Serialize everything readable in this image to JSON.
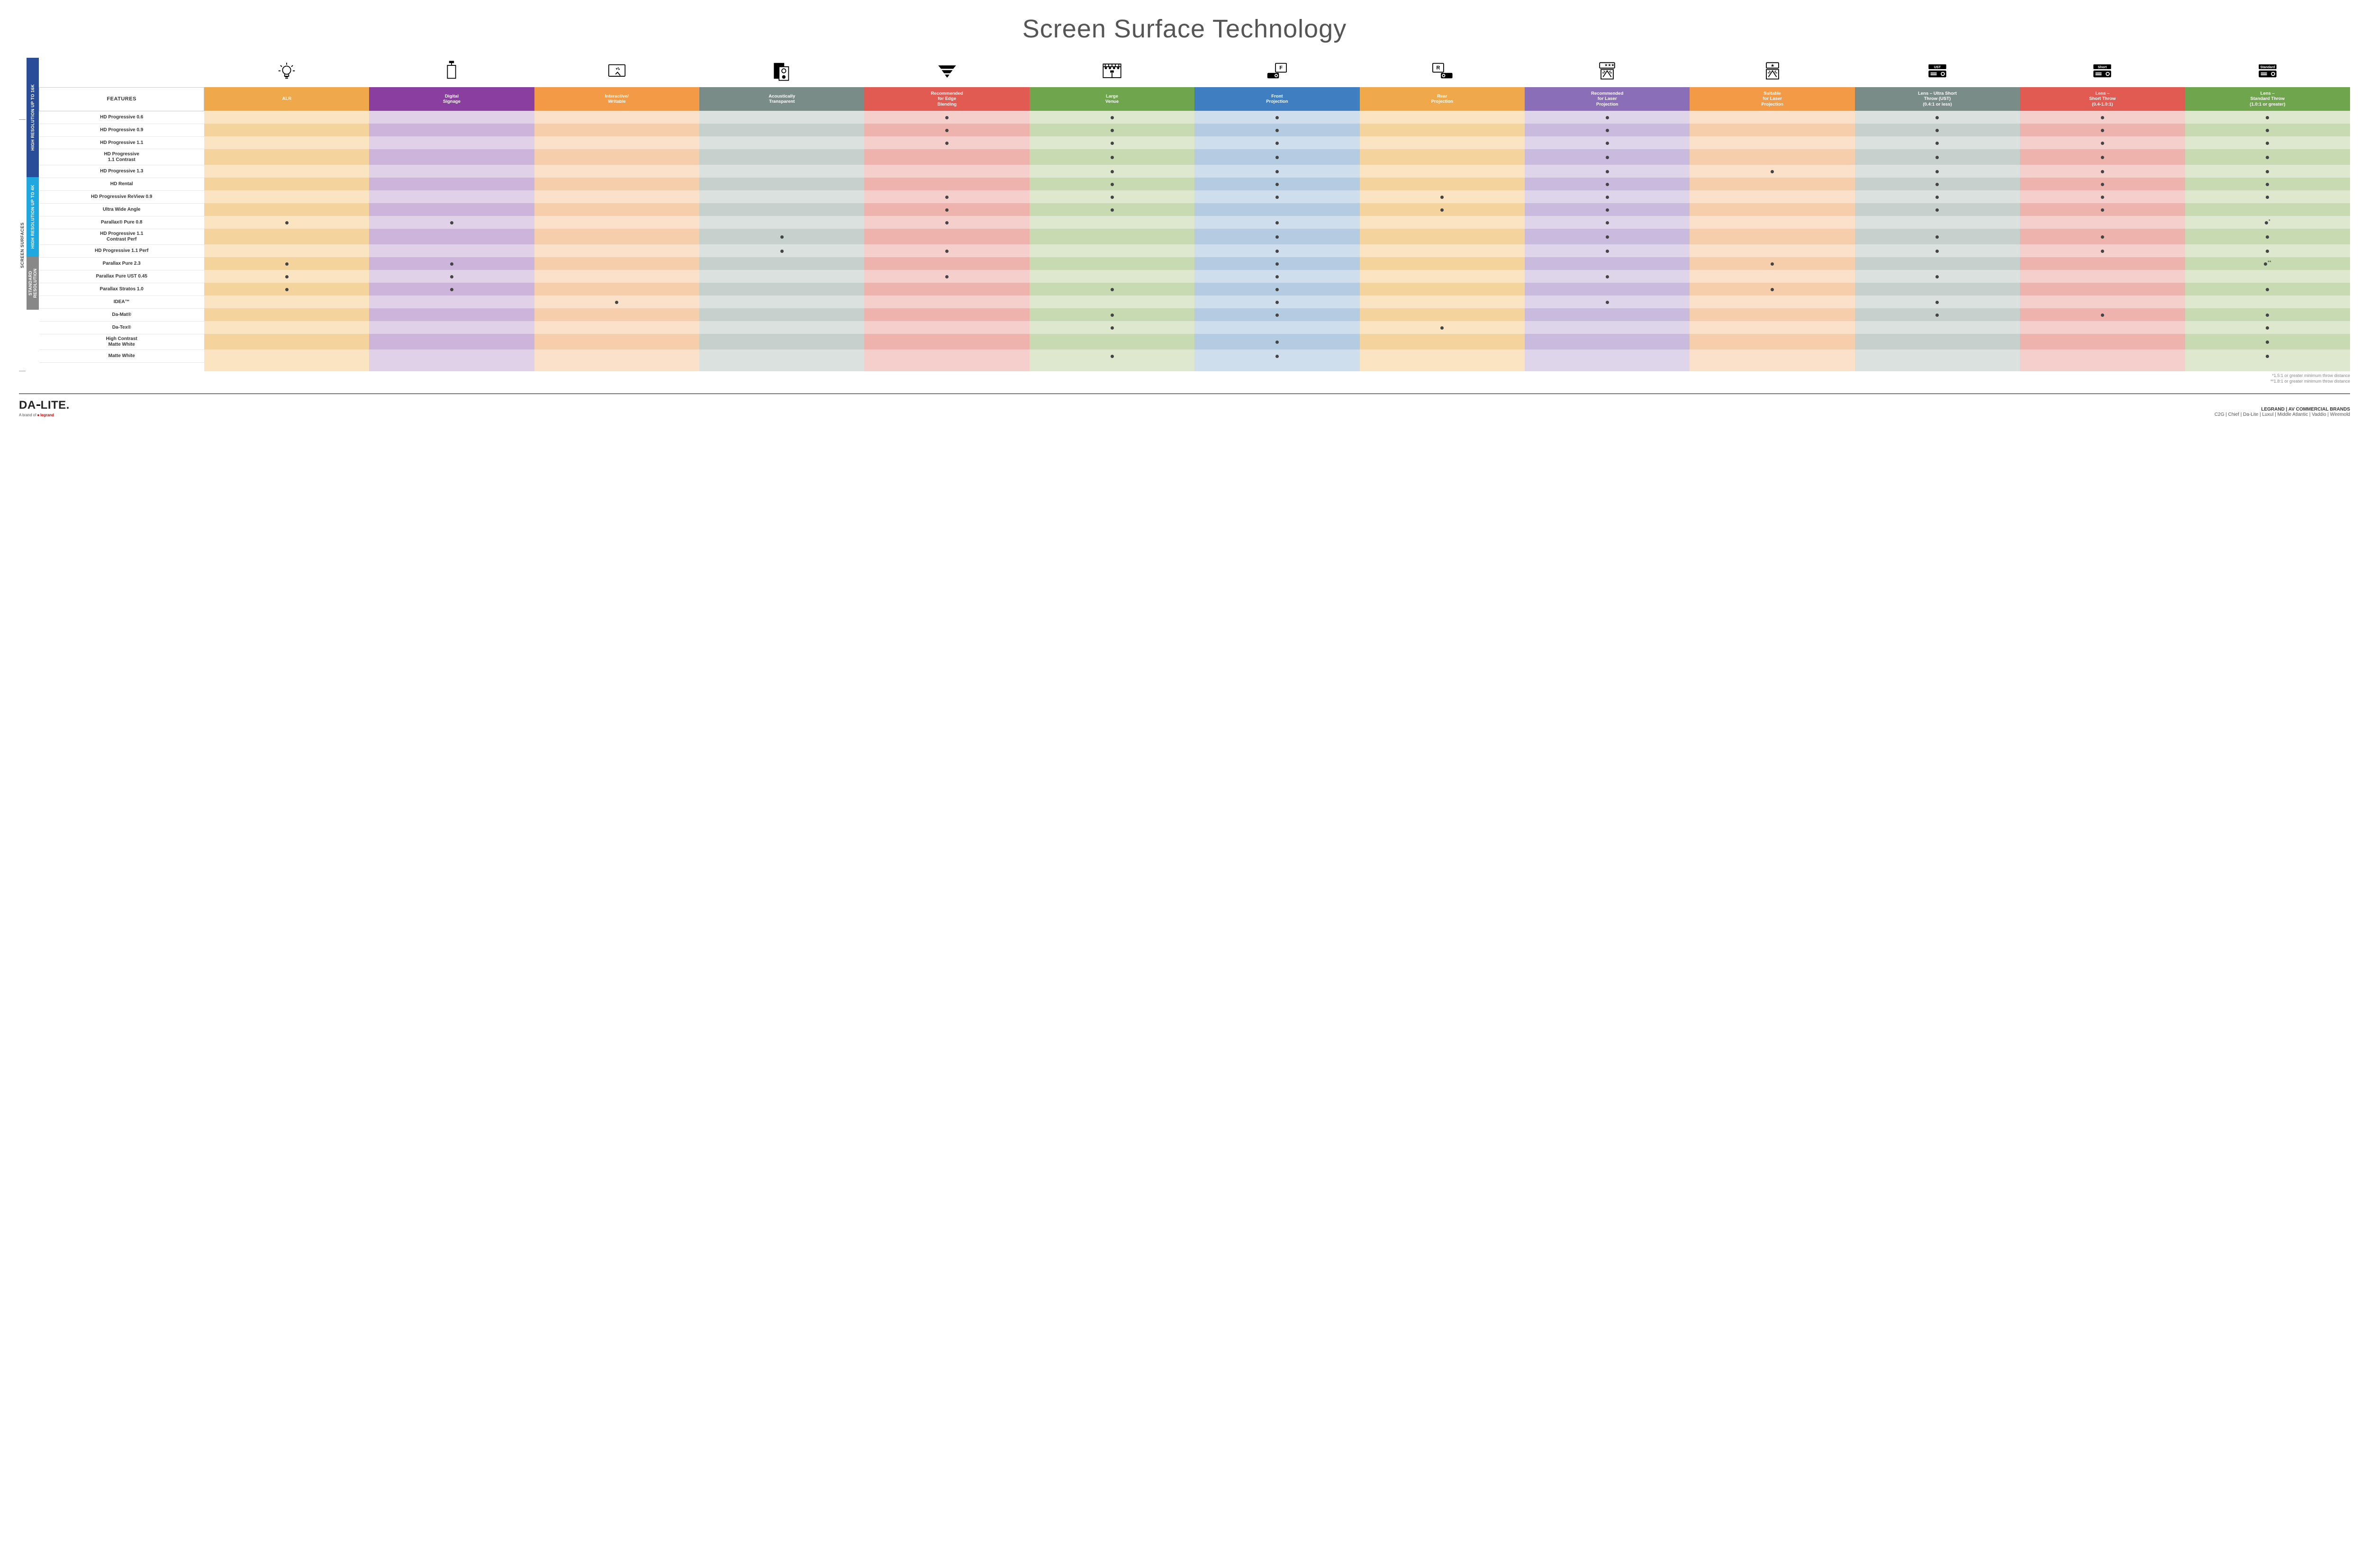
{
  "title": "Screen Surface Technology",
  "features_label": "FEATURES",
  "side_outer_label": "SCREEN SURFACES",
  "groups": [
    {
      "label": "HIGH RESOLUTION UP TO 16K",
      "color": "#2a4d9a",
      "span": 9
    },
    {
      "label": "HIGH RESOLUTION UP TO 4K",
      "color": "#1fa7e0",
      "span": 6
    },
    {
      "label": "STANDARD\nRESOLUTION",
      "color": "#888888",
      "span": 4
    }
  ],
  "columns": [
    {
      "label": "ALR",
      "header_color": "#f0a94a",
      "tint_light": "#fae4c2",
      "tint_dark": "#f5d39d"
    },
    {
      "label": "Digital\nSignage",
      "header_color": "#8a3fa0",
      "tint_light": "#e0d0e8",
      "tint_dark": "#cdb4da"
    },
    {
      "label": "Interactive/\nWritable",
      "header_color": "#f39a47",
      "tint_light": "#fbe1ca",
      "tint_dark": "#f7ceac"
    },
    {
      "label": "Acoustically\nTransparent",
      "header_color": "#7a8c88",
      "tint_light": "#dbe1df",
      "tint_dark": "#c6d0cd"
    },
    {
      "label": "Recommended\nfor Edge\nBlending",
      "header_color": "#e15b52",
      "tint_light": "#f5cfcb",
      "tint_dark": "#efb3ad"
    },
    {
      "label": "Large\nVenue",
      "header_color": "#6fa64d",
      "tint_light": "#dde8ce",
      "tint_dark": "#c8dab2"
    },
    {
      "label": "Front\nProjection",
      "header_color": "#3f7fc1",
      "tint_light": "#cfdeed",
      "tint_dark": "#b4cce2"
    },
    {
      "label": "Rear\nProjection",
      "header_color": "#f0a94a",
      "tint_light": "#fae4c2",
      "tint_dark": "#f5d39d"
    },
    {
      "label": "Recommended\nfor Laser\nProjection",
      "header_color": "#8a6fb8",
      "tint_light": "#ded5ea",
      "tint_dark": "#c9bbdd"
    },
    {
      "label": "Suitable\nfor Laser\nProjection",
      "header_color": "#f39a47",
      "tint_light": "#fbe1ca",
      "tint_dark": "#f7ceac"
    },
    {
      "label": "Lens – Ultra Short\nThrow (UST)\n(0.4:1 or less)",
      "header_color": "#7a8c88",
      "tint_light": "#dbe1df",
      "tint_dark": "#c6d0cd"
    },
    {
      "label": "Lens –\nShort Throw\n(0.4-1.0:1)",
      "header_color": "#e15b52",
      "tint_light": "#f5cfcb",
      "tint_dark": "#efb3ad"
    },
    {
      "label": "Lens –\nStandard Throw\n(1.0:1 or greater)",
      "header_color": "#6fa64d",
      "tint_light": "#dde8ce",
      "tint_dark": "#c8dab2"
    }
  ],
  "rows": [
    {
      "label": "HD Progressive 0.6",
      "dots": [
        "",
        "",
        "",
        "",
        "•",
        "•",
        "•",
        "",
        "•",
        "",
        "•",
        "•",
        "•"
      ]
    },
    {
      "label": "HD Progressive 0.9",
      "dots": [
        "",
        "",
        "",
        "",
        "•",
        "•",
        "•",
        "",
        "•",
        "",
        "•",
        "•",
        "•"
      ]
    },
    {
      "label": "HD Progressive 1.1",
      "dots": [
        "",
        "",
        "",
        "",
        "•",
        "•",
        "•",
        "",
        "•",
        "",
        "•",
        "•",
        "•"
      ]
    },
    {
      "label": "HD Progressive\n1.1 Contrast",
      "dots": [
        "",
        "",
        "",
        "",
        "",
        "•",
        "•",
        "",
        "•",
        "",
        "•",
        "•",
        "•"
      ]
    },
    {
      "label": "HD Progressive 1.3",
      "dots": [
        "",
        "",
        "",
        "",
        "",
        "•",
        "•",
        "",
        "•",
        "•",
        "•",
        "•",
        "•"
      ]
    },
    {
      "label": "HD Rental",
      "dots": [
        "",
        "",
        "",
        "",
        "",
        "•",
        "•",
        "",
        "•",
        "",
        "•",
        "•",
        "•"
      ]
    },
    {
      "label": "HD Progressive ReView 0.9",
      "dots": [
        "",
        "",
        "",
        "",
        "•",
        "•",
        "•",
        "•",
        "•",
        "",
        "•",
        "•",
        "•"
      ]
    },
    {
      "label": "Ultra Wide Angle",
      "dots": [
        "",
        "",
        "",
        "",
        "•",
        "•",
        "",
        "•",
        "•",
        "",
        "•",
        "•",
        ""
      ]
    },
    {
      "label": "Parallax® Pure 0.8",
      "dots": [
        "•",
        "•",
        "",
        "",
        "•",
        "",
        "•",
        "",
        "•",
        "",
        "",
        "",
        "•*"
      ]
    },
    {
      "label": "HD Progressive 1.1\nContrast Perf",
      "dots": [
        "",
        "",
        "",
        "•",
        "",
        "",
        "•",
        "",
        "•",
        "",
        "•",
        "•",
        "•"
      ]
    },
    {
      "label": "HD Progressive 1.1 Perf",
      "dots": [
        "",
        "",
        "",
        "•",
        "•",
        "",
        "•",
        "",
        "•",
        "",
        "•",
        "•",
        "•"
      ]
    },
    {
      "label": "Parallax Pure 2.3",
      "dots": [
        "•",
        "•",
        "",
        "",
        "",
        "",
        "•",
        "",
        "",
        "•",
        "",
        "",
        "•**"
      ]
    },
    {
      "label": "Parallax Pure UST 0.45",
      "dots": [
        "•",
        "•",
        "",
        "",
        "•",
        "",
        "•",
        "",
        "•",
        "",
        "•",
        "",
        ""
      ]
    },
    {
      "label": "Parallax Stratos 1.0",
      "dots": [
        "•",
        "•",
        "",
        "",
        "",
        "•",
        "•",
        "",
        "",
        "•",
        "",
        "",
        "•"
      ]
    },
    {
      "label": "IDEA™",
      "dots": [
        "",
        "",
        "•",
        "",
        "",
        "",
        "•",
        "",
        "•",
        "",
        "•",
        "",
        ""
      ]
    },
    {
      "label": "Da-Mat®",
      "dots": [
        "",
        "",
        "",
        "",
        "",
        "•",
        "•",
        "",
        "",
        "",
        "•",
        "•",
        "•"
      ]
    },
    {
      "label": "Da-Tex®",
      "dots": [
        "",
        "",
        "",
        "",
        "",
        "•",
        "",
        "•",
        "",
        "",
        "",
        "",
        "•"
      ]
    },
    {
      "label": "High Contrast\nMatte White",
      "dots": [
        "",
        "",
        "",
        "",
        "",
        "",
        "•",
        "",
        "",
        "",
        "",
        "",
        "•"
      ]
    },
    {
      "label": "Matte White",
      "dots": [
        "",
        "",
        "",
        "",
        "",
        "•",
        "•",
        "",
        "",
        "",
        "",
        "",
        "•"
      ]
    }
  ],
  "footnotes": [
    "*1.5:1 or greater minimum throw distance",
    "**1.8:1 or greater minimum throw distance"
  ],
  "footer": {
    "logo_main": "DA-LITE.",
    "logo_sub_prefix": "A brand of ",
    "logo_sub_brand": "legrand",
    "brands_title": "LEGRAND | AV COMMERCIAL BRANDS",
    "brands_list": "C2G  |  Chief  |  Da-Lite  |  Luxul  |  Middle Atlantic  |  Vaddio  |  Wiremold"
  },
  "icon_labels": {
    "ust": "UST",
    "short": "Short",
    "standard": "Standard"
  }
}
